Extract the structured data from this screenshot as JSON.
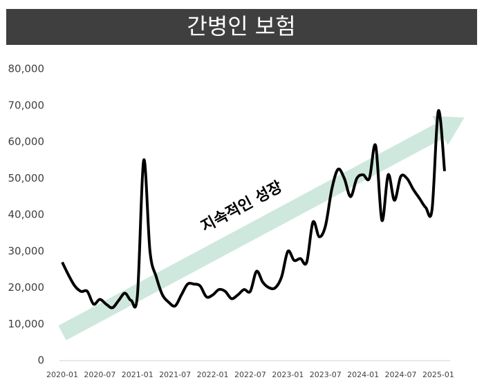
{
  "chart_data": {
    "type": "line",
    "title": "간병인 보험",
    "annotation": "지속적인 성장",
    "categories": [
      "2020-01",
      null,
      null,
      null,
      null,
      null,
      "2020-07",
      null,
      null,
      null,
      null,
      null,
      "2021-01",
      null,
      null,
      null,
      null,
      null,
      "2021-07",
      null,
      null,
      null,
      null,
      null,
      "2022-01",
      null,
      null,
      null,
      null,
      null,
      "2022-07",
      null,
      null,
      null,
      null,
      null,
      "2023-01",
      null,
      null,
      null,
      null,
      null,
      "2023-07",
      null,
      null,
      null,
      null,
      null,
      "2024-01",
      null,
      null,
      null,
      null,
      null,
      "2024-07",
      null,
      null,
      null,
      null,
      null,
      "2025-01",
      null
    ],
    "series": [
      {
        "name": "간병인 보험",
        "color": "#000000",
        "values": [
          27000,
          23500,
          20500,
          19000,
          19000,
          15500,
          16800,
          15500,
          14500,
          16500,
          18500,
          16500,
          18000,
          55000,
          30000,
          23000,
          18000,
          16000,
          15000,
          18000,
          21000,
          21000,
          20500,
          17500,
          18000,
          19500,
          19000,
          17000,
          18000,
          19500,
          19000,
          24500,
          21500,
          20000,
          20000,
          23000,
          30000,
          27500,
          28000,
          27000,
          38000,
          34000,
          37000,
          47000,
          52500,
          50000,
          45000,
          50000,
          51000,
          50000,
          59000,
          38500,
          51000,
          44000,
          50500,
          50000,
          47000,
          44500,
          42000,
          41500,
          68500,
          52000
        ]
      }
    ],
    "ylim": [
      0,
      80000
    ],
    "yticks": [
      0,
      {
        "value": 10000,
        "label": "10,000"
      },
      {
        "value": 20000,
        "label": "20,000"
      },
      {
        "value": 30000,
        "label": "30,000"
      },
      {
        "value": 40000,
        "label": "40,000"
      },
      {
        "value": 50000,
        "label": "50,000"
      },
      {
        "value": 60000,
        "label": "60,000"
      },
      {
        "value": 70000,
        "label": "70,000"
      },
      {
        "value": 80000,
        "label": "80,000"
      }
    ]
  }
}
